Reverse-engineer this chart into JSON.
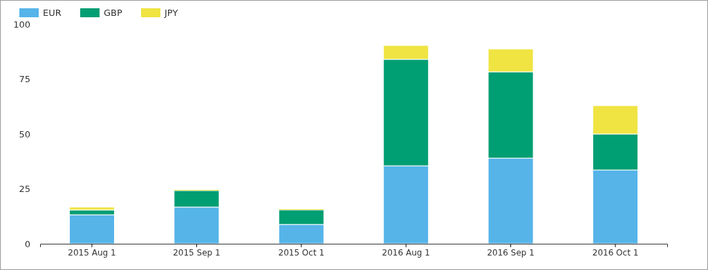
{
  "chart_data": {
    "type": "bar",
    "stacked": true,
    "categories": [
      "2015 Aug 1",
      "2015 Sep 1",
      "2015 Oct 1",
      "2016 Aug 1",
      "2016 Sep 1",
      "2016 Oct 1"
    ],
    "series": [
      {
        "name": "EUR",
        "color": "#56b4e9",
        "values": [
          13.2,
          16.7,
          8.8,
          35.5,
          39,
          33.6
        ]
      },
      {
        "name": "GBP",
        "color": "#009e73",
        "values": [
          2.2,
          7.5,
          6.6,
          48.5,
          39.3,
          16.4
        ]
      },
      {
        "name": "JPY",
        "color": "#f0e442",
        "values": [
          1.3,
          0.3,
          0.3,
          6.3,
          10.4,
          12.9
        ]
      }
    ],
    "ylim": [
      0,
      100
    ],
    "yticks": [
      0,
      25,
      50,
      75,
      100
    ],
    "grid": false,
    "legend": "top left"
  }
}
